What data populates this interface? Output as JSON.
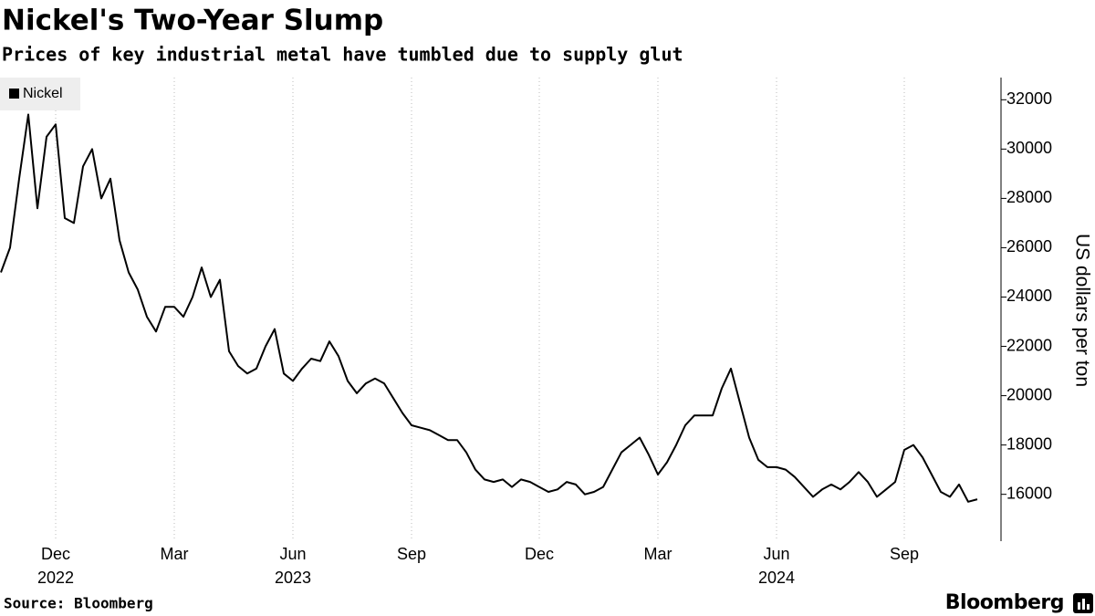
{
  "chart_data": {
    "type": "line",
    "title": "Nickel's Two-Year Slump",
    "subtitle": "Prices of key industrial metal have tumbled due to supply glut",
    "y_label": "US dollars per ton",
    "categories": [
      null,
      null,
      null,
      null,
      null,
      null,
      "Dec",
      null,
      null,
      null,
      null,
      null,
      null,
      null,
      null,
      null,
      null,
      null,
      null,
      "Mar",
      null,
      null,
      null,
      null,
      null,
      null,
      null,
      null,
      null,
      null,
      null,
      null,
      "Jun",
      null,
      null,
      null,
      null,
      null,
      null,
      null,
      null,
      null,
      null,
      null,
      null,
      "Sep",
      null,
      null,
      null,
      null,
      null,
      null,
      null,
      null,
      null,
      null,
      null,
      null,
      null,
      "Dec",
      null,
      null,
      null,
      null,
      null,
      null,
      null,
      null,
      null,
      null,
      null,
      null,
      "Mar",
      null,
      null,
      null,
      null,
      null,
      null,
      null,
      null,
      null,
      null,
      null,
      null,
      "Jun",
      null,
      null,
      null,
      null,
      null,
      null,
      null,
      null,
      null,
      null,
      null,
      null,
      null,
      "Sep",
      null,
      null,
      null,
      null,
      null,
      null,
      null,
      null
    ],
    "years": [
      null,
      null,
      null,
      null,
      null,
      null,
      "2022",
      null,
      null,
      null,
      null,
      null,
      null,
      null,
      null,
      null,
      null,
      null,
      null,
      null,
      null,
      null,
      null,
      null,
      null,
      null,
      null,
      null,
      null,
      null,
      null,
      null,
      "2023",
      null,
      null,
      null,
      null,
      null,
      null,
      null,
      null,
      null,
      null,
      null,
      null,
      null,
      null,
      null,
      null,
      null,
      null,
      null,
      null,
      null,
      null,
      null,
      null,
      null,
      null,
      null,
      null,
      null,
      null,
      null,
      null,
      null,
      null,
      null,
      null,
      null,
      null,
      null,
      null,
      null,
      null,
      null,
      null,
      null,
      null,
      null,
      null,
      null,
      null,
      null,
      null,
      "2024",
      null,
      null,
      null,
      null,
      null,
      null,
      null,
      null,
      null,
      null,
      null,
      null,
      null,
      null,
      null,
      null,
      null,
      null,
      null,
      null,
      null,
      null
    ],
    "series": [
      {
        "name": "Nickel",
        "color": "#000000",
        "values": [
          25000,
          26000,
          28800,
          31400,
          27600,
          30500,
          31000,
          27200,
          27000,
          29300,
          30000,
          28000,
          28800,
          26300,
          25000,
          24300,
          23200,
          22600,
          23600,
          23600,
          23200,
          24000,
          25200,
          24000,
          24700,
          21800,
          21200,
          20900,
          21100,
          22000,
          22700,
          20900,
          20600,
          21100,
          21500,
          21400,
          22200,
          21600,
          20600,
          20100,
          20500,
          20700,
          20500,
          19900,
          19300,
          18800,
          18700,
          18600,
          18400,
          18200,
          18200,
          17700,
          17000,
          16600,
          16500,
          16600,
          16300,
          16600,
          16500,
          16300,
          16100,
          16200,
          16500,
          16400,
          16000,
          16100,
          16300,
          17000,
          17700,
          18000,
          18300,
          17600,
          16800,
          17300,
          18000,
          18800,
          19200,
          19200,
          19200,
          20300,
          21100,
          19700,
          18300,
          17400,
          17100,
          17100,
          17000,
          16700,
          16300,
          15900,
          16200,
          16400,
          16200,
          16500,
          16900,
          16500,
          15900,
          16200,
          16500,
          17800,
          18000,
          17500,
          16800,
          16100,
          15900,
          16400,
          15700,
          15800
        ]
      }
    ],
    "ylim": [
      14100,
      32900
    ],
    "yticks": [
      16000,
      18000,
      20000,
      22000,
      24000,
      26000,
      28000,
      30000,
      32000
    ],
    "grid": true,
    "legend": "top-left",
    "source": "Source: Bloomberg",
    "brand": "Bloomberg"
  }
}
